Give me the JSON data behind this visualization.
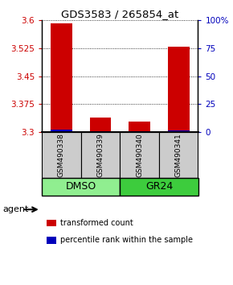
{
  "title": "GDS3583 / 265854_at",
  "samples": [
    "GSM490338",
    "GSM490339",
    "GSM490340",
    "GSM490341"
  ],
  "red_values": [
    3.592,
    3.34,
    3.328,
    3.528
  ],
  "blue_values": [
    3.308,
    3.303,
    3.303,
    3.306
  ],
  "y_min": 3.3,
  "y_max": 3.6,
  "y_ticks_left": [
    3.3,
    3.375,
    3.45,
    3.525,
    3.6
  ],
  "y_ticks_right": [
    0,
    25,
    50,
    75,
    100
  ],
  "y_ticks_right_labels": [
    "0",
    "25",
    "50",
    "75",
    "100%"
  ],
  "groups": [
    {
      "label": "DMSO",
      "indices": [
        0,
        1
      ],
      "color": "#90EE90"
    },
    {
      "label": "GR24",
      "indices": [
        2,
        3
      ],
      "color": "#3DCC3D"
    }
  ],
  "bar_width": 0.55,
  "red_color": "#CC0000",
  "blue_color": "#0000BB",
  "label_color_left": "#CC0000",
  "label_color_right": "#0000BB",
  "sample_box_color": "#CCCCCC",
  "legend_red_label": "transformed count",
  "legend_blue_label": "percentile rank within the sample",
  "agent_label": "agent",
  "base_value": 3.3,
  "n_samples": 4
}
